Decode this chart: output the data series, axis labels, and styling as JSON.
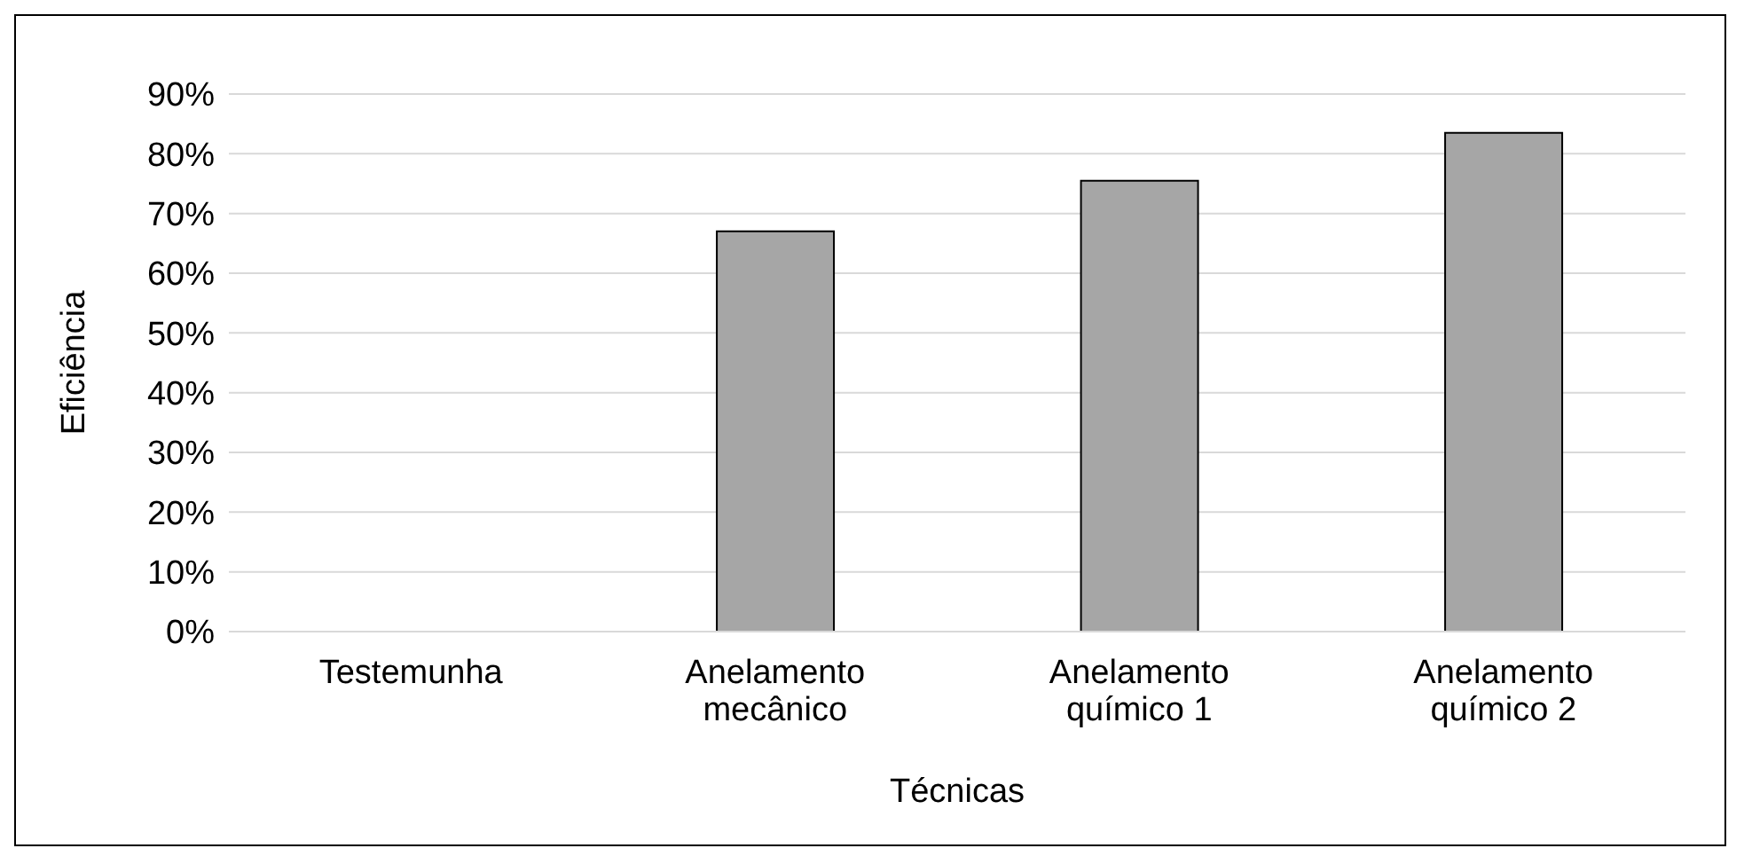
{
  "chart_data": {
    "type": "bar",
    "xlabel": "Técnicas",
    "ylabel": "Eficiência",
    "categories": [
      "Testemunha",
      "Anelamento mecânico",
      "Anelamento químico 1",
      "Anelamento químico 2"
    ],
    "values": [
      0,
      67,
      75.5,
      83.5
    ],
    "color": "#a6a6a6",
    "ylim": [
      0,
      90
    ],
    "yticks": [
      {
        "value": 0,
        "label": "0%"
      },
      {
        "value": 10,
        "label": "10%"
      },
      {
        "value": 20,
        "label": "20%"
      },
      {
        "value": 30,
        "label": "30%"
      },
      {
        "value": 40,
        "label": "40%"
      },
      {
        "value": 50,
        "label": "50%"
      },
      {
        "value": 60,
        "label": "60%"
      },
      {
        "value": 70,
        "label": "70%"
      },
      {
        "value": 80,
        "label": "80%"
      },
      {
        "value": 90,
        "label": "90%"
      }
    ],
    "grid": "y"
  }
}
